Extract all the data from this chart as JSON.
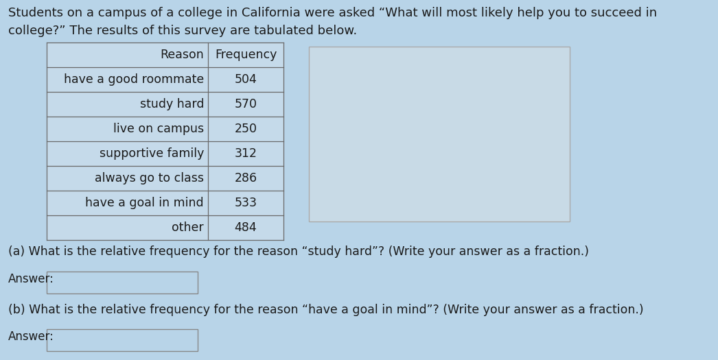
{
  "title_line1": "Students on a campus of a college in California were asked “What will most likely help you to succeed in",
  "title_line2": "college?” The results of this survey are tabulated below.",
  "table_headers": [
    "Reason",
    "Frequency"
  ],
  "table_rows": [
    [
      "have a good roommate",
      "504"
    ],
    [
      "study hard",
      "570"
    ],
    [
      "live on campus",
      "250"
    ],
    [
      "supportive family",
      "312"
    ],
    [
      "always go to class",
      "286"
    ],
    [
      "have a goal in mind",
      "533"
    ],
    [
      "other",
      "484"
    ]
  ],
  "question_a": "(a) What is the relative frequency for the reason “study hard”? (Write your answer as a fraction.)",
  "question_b": "(b) What is the relative frequency for the reason “have a goal in mind”? (Write your answer as a fraction.)",
  "answer_label": "Answer:",
  "bg_color": "#b8d4e8",
  "table_bg": "#c8dfe f",
  "table_border_color": "#6a6a6a",
  "text_color": "#1a1a1a",
  "answer_box_facecolor": "#b8d4e8",
  "answer_box_border": "#888888",
  "right_panel_color": "#c8dae8",
  "right_panel_border": "#aaaaaa",
  "title_fontsize": 13.0,
  "table_fontsize": 12.5,
  "question_fontsize": 12.5,
  "answer_fontsize": 12.0
}
